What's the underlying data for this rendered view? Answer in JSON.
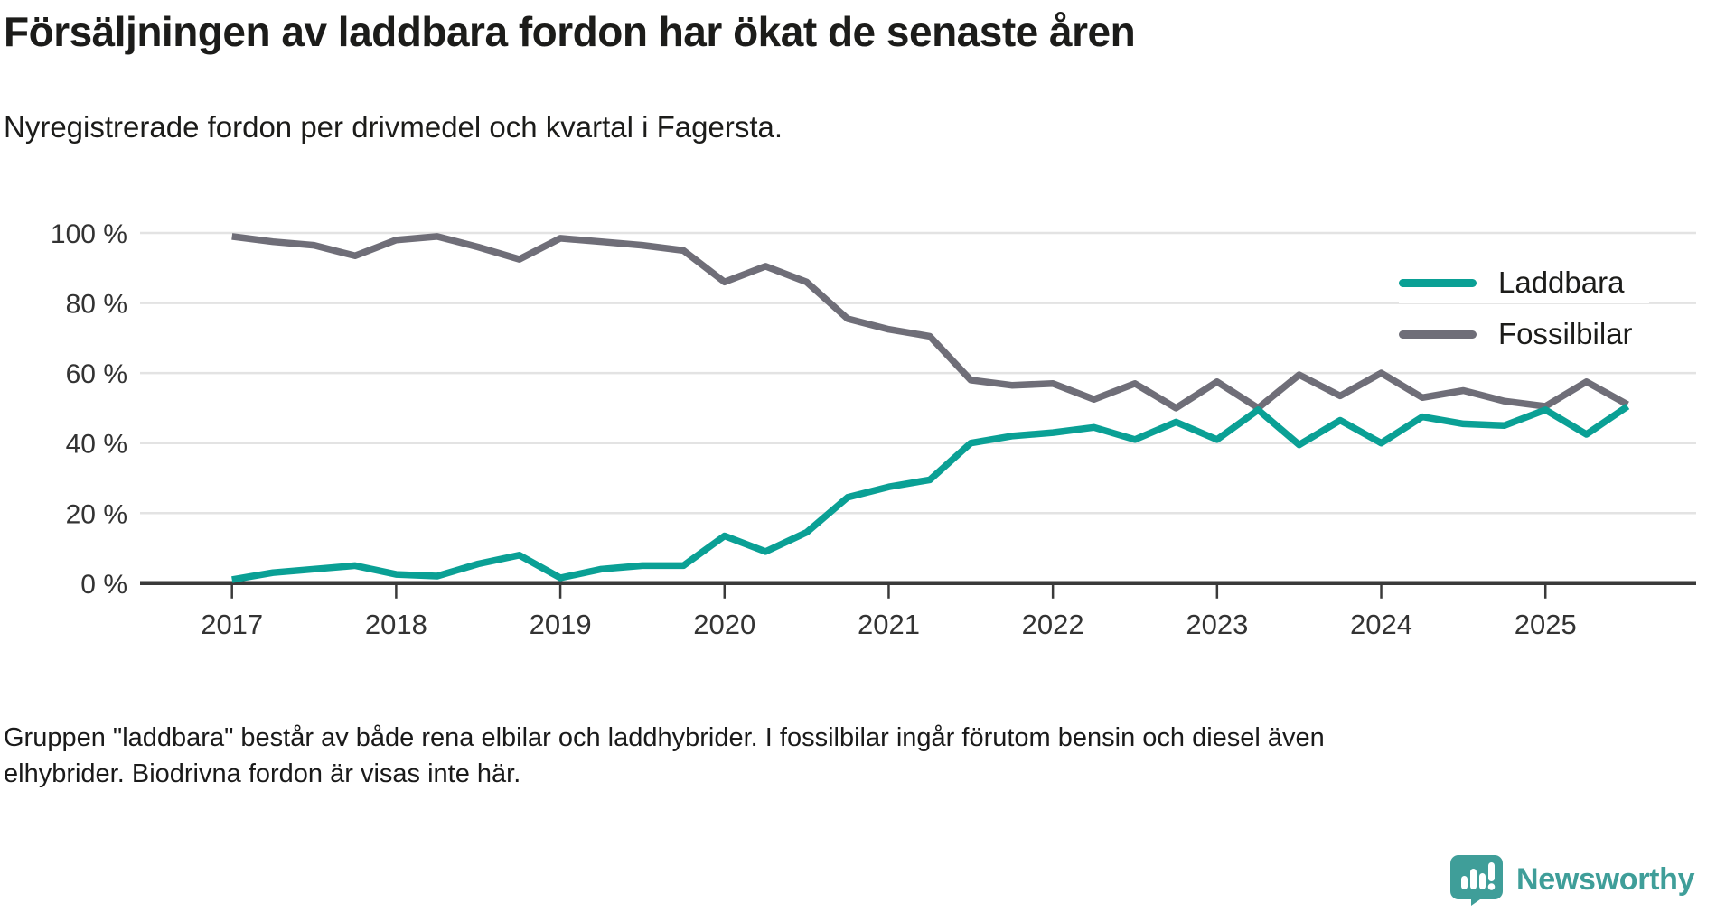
{
  "header": {
    "title": "Försäljningen av laddbara fordon har ökat de senaste åren",
    "subtitle": "Nyregistrerade fordon per drivmedel och kvartal i Fagersta."
  },
  "chart_data": {
    "type": "line",
    "title": "Försäljningen av laddbara fordon har ökat de senaste åren",
    "subtitle": "Nyregistrerade fordon per drivmedel och kvartal i Fagersta.",
    "categories": [
      "2017 Q1",
      "2017 Q2",
      "2017 Q3",
      "2017 Q4",
      "2018 Q1",
      "2018 Q2",
      "2018 Q3",
      "2018 Q4",
      "2019 Q1",
      "2019 Q2",
      "2019 Q3",
      "2019 Q4",
      "2020 Q1",
      "2020 Q2",
      "2020 Q3",
      "2020 Q4",
      "2021 Q1",
      "2021 Q2",
      "2021 Q3",
      "2021 Q4",
      "2022 Q1",
      "2022 Q2",
      "2022 Q3",
      "2022 Q4",
      "2023 Q1",
      "2023 Q2",
      "2023 Q3",
      "2023 Q4",
      "2024 Q1",
      "2024 Q2",
      "2024 Q3",
      "2024 Q4",
      "2025 Q1",
      "2025 Q2",
      "2025 Q3"
    ],
    "series": [
      {
        "name": "Laddbara",
        "color": "#0aa095",
        "values": [
          1,
          3,
          4,
          5,
          2.5,
          2,
          5.5,
          8,
          1.5,
          4,
          5,
          5,
          13.5,
          9,
          14.5,
          24.5,
          27.5,
          29.5,
          40,
          42,
          43,
          44.5,
          41,
          46,
          41,
          49.5,
          39.5,
          46.5,
          40,
          47.5,
          45.5,
          45,
          49.5,
          42.5,
          50.5
        ]
      },
      {
        "name": "Fossilbilar",
        "color": "#6f6e78",
        "values": [
          99,
          97.5,
          96.5,
          93.5,
          98,
          99,
          96,
          92.5,
          98.5,
          97.5,
          96.5,
          95,
          86,
          90.5,
          86,
          75.5,
          72.5,
          70.5,
          58,
          56.5,
          57,
          52.5,
          57,
          50,
          57.5,
          50,
          59.5,
          53.5,
          60,
          53,
          55,
          52,
          50.5,
          57.5,
          51
        ]
      }
    ],
    "ylim": [
      0,
      100
    ],
    "y_ticks": [
      0,
      20,
      40,
      60,
      80,
      100
    ],
    "y_tick_labels": [
      "0 %",
      "20 %",
      "40 %",
      "60 %",
      "80 %",
      "100 %"
    ],
    "x_tick_labels": [
      "2017",
      "2018",
      "2019",
      "2020",
      "2021",
      "2022",
      "2023",
      "2024",
      "2025"
    ],
    "x_tick_indices": [
      0,
      4,
      8,
      12,
      16,
      20,
      24,
      28,
      32
    ],
    "grid": "horizontal",
    "legend_position": "top-right"
  },
  "footer": {
    "note": "Gruppen \"laddbara\" består av både rena elbilar och laddhybrider. I fossilbilar ingår förutom bensin och diesel även elhybrider. Biodrivna fordon är visas inte här."
  },
  "logo": {
    "brand": "Newsworthy",
    "color": "#3f9e99"
  },
  "colors": {
    "axis": "#3a3a3a",
    "grid": "#e3e3e3",
    "text": "#1c1c1a",
    "tick_text": "#333333",
    "background": "#ffffff"
  }
}
